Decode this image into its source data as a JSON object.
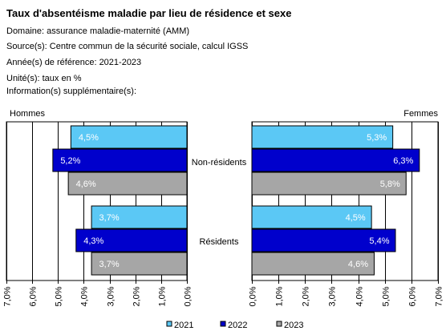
{
  "header": {
    "title": "Taux d'absentéisme maladie par lieu de résidence et sexe",
    "domaine": "Domaine: assurance maladie-maternité (AMM)",
    "sources": "Source(s): Centre commun de la sécurité sociale, calcul IGSS",
    "annees": "Année(s) de référence: 2021-2023",
    "unites": "Unité(s): taux en %",
    "info": "Information(s) supplémentaire(s):"
  },
  "colors": {
    "2021": "#5BC8F5",
    "2022": "#0000CC",
    "2023": "#A6A6A6"
  },
  "chart_data": {
    "type": "bar",
    "orientation": "horizontal",
    "categories": [
      "Non-résidents",
      "Résidents"
    ],
    "panels": [
      {
        "name": "Hommes",
        "xlim": [
          7.0,
          0.0
        ],
        "series": [
          {
            "name": "2021",
            "values": [
              4.5,
              3.7
            ],
            "labels": [
              "4,5%",
              "3,7%"
            ]
          },
          {
            "name": "2022",
            "values": [
              5.2,
              4.3
            ],
            "labels": [
              "5,2%",
              "4,3%"
            ]
          },
          {
            "name": "2023",
            "values": [
              4.6,
              3.7
            ],
            "labels": [
              "4,6%",
              "3,7%"
            ]
          }
        ]
      },
      {
        "name": "Femmes",
        "xlim": [
          0.0,
          7.0
        ],
        "series": [
          {
            "name": "2021",
            "values": [
              5.3,
              4.5
            ],
            "labels": [
              "5,3%",
              "4,5%"
            ]
          },
          {
            "name": "2022",
            "values": [
              6.3,
              5.4
            ],
            "labels": [
              "6,3%",
              "5,4%"
            ]
          },
          {
            "name": "2023",
            "values": [
              5.8,
              4.6
            ],
            "labels": [
              "5,8%",
              "4,6%"
            ]
          }
        ]
      }
    ],
    "xticks": [
      0,
      1,
      2,
      3,
      4,
      5,
      6,
      7
    ],
    "xtick_labels": [
      "0,0%",
      "1,0%",
      "2,0%",
      "3,0%",
      "4,0%",
      "5,0%",
      "6,0%",
      "7,0%"
    ],
    "grid": true,
    "legend": [
      "2021",
      "2022",
      "2023"
    ],
    "legend_position": "bottom"
  }
}
